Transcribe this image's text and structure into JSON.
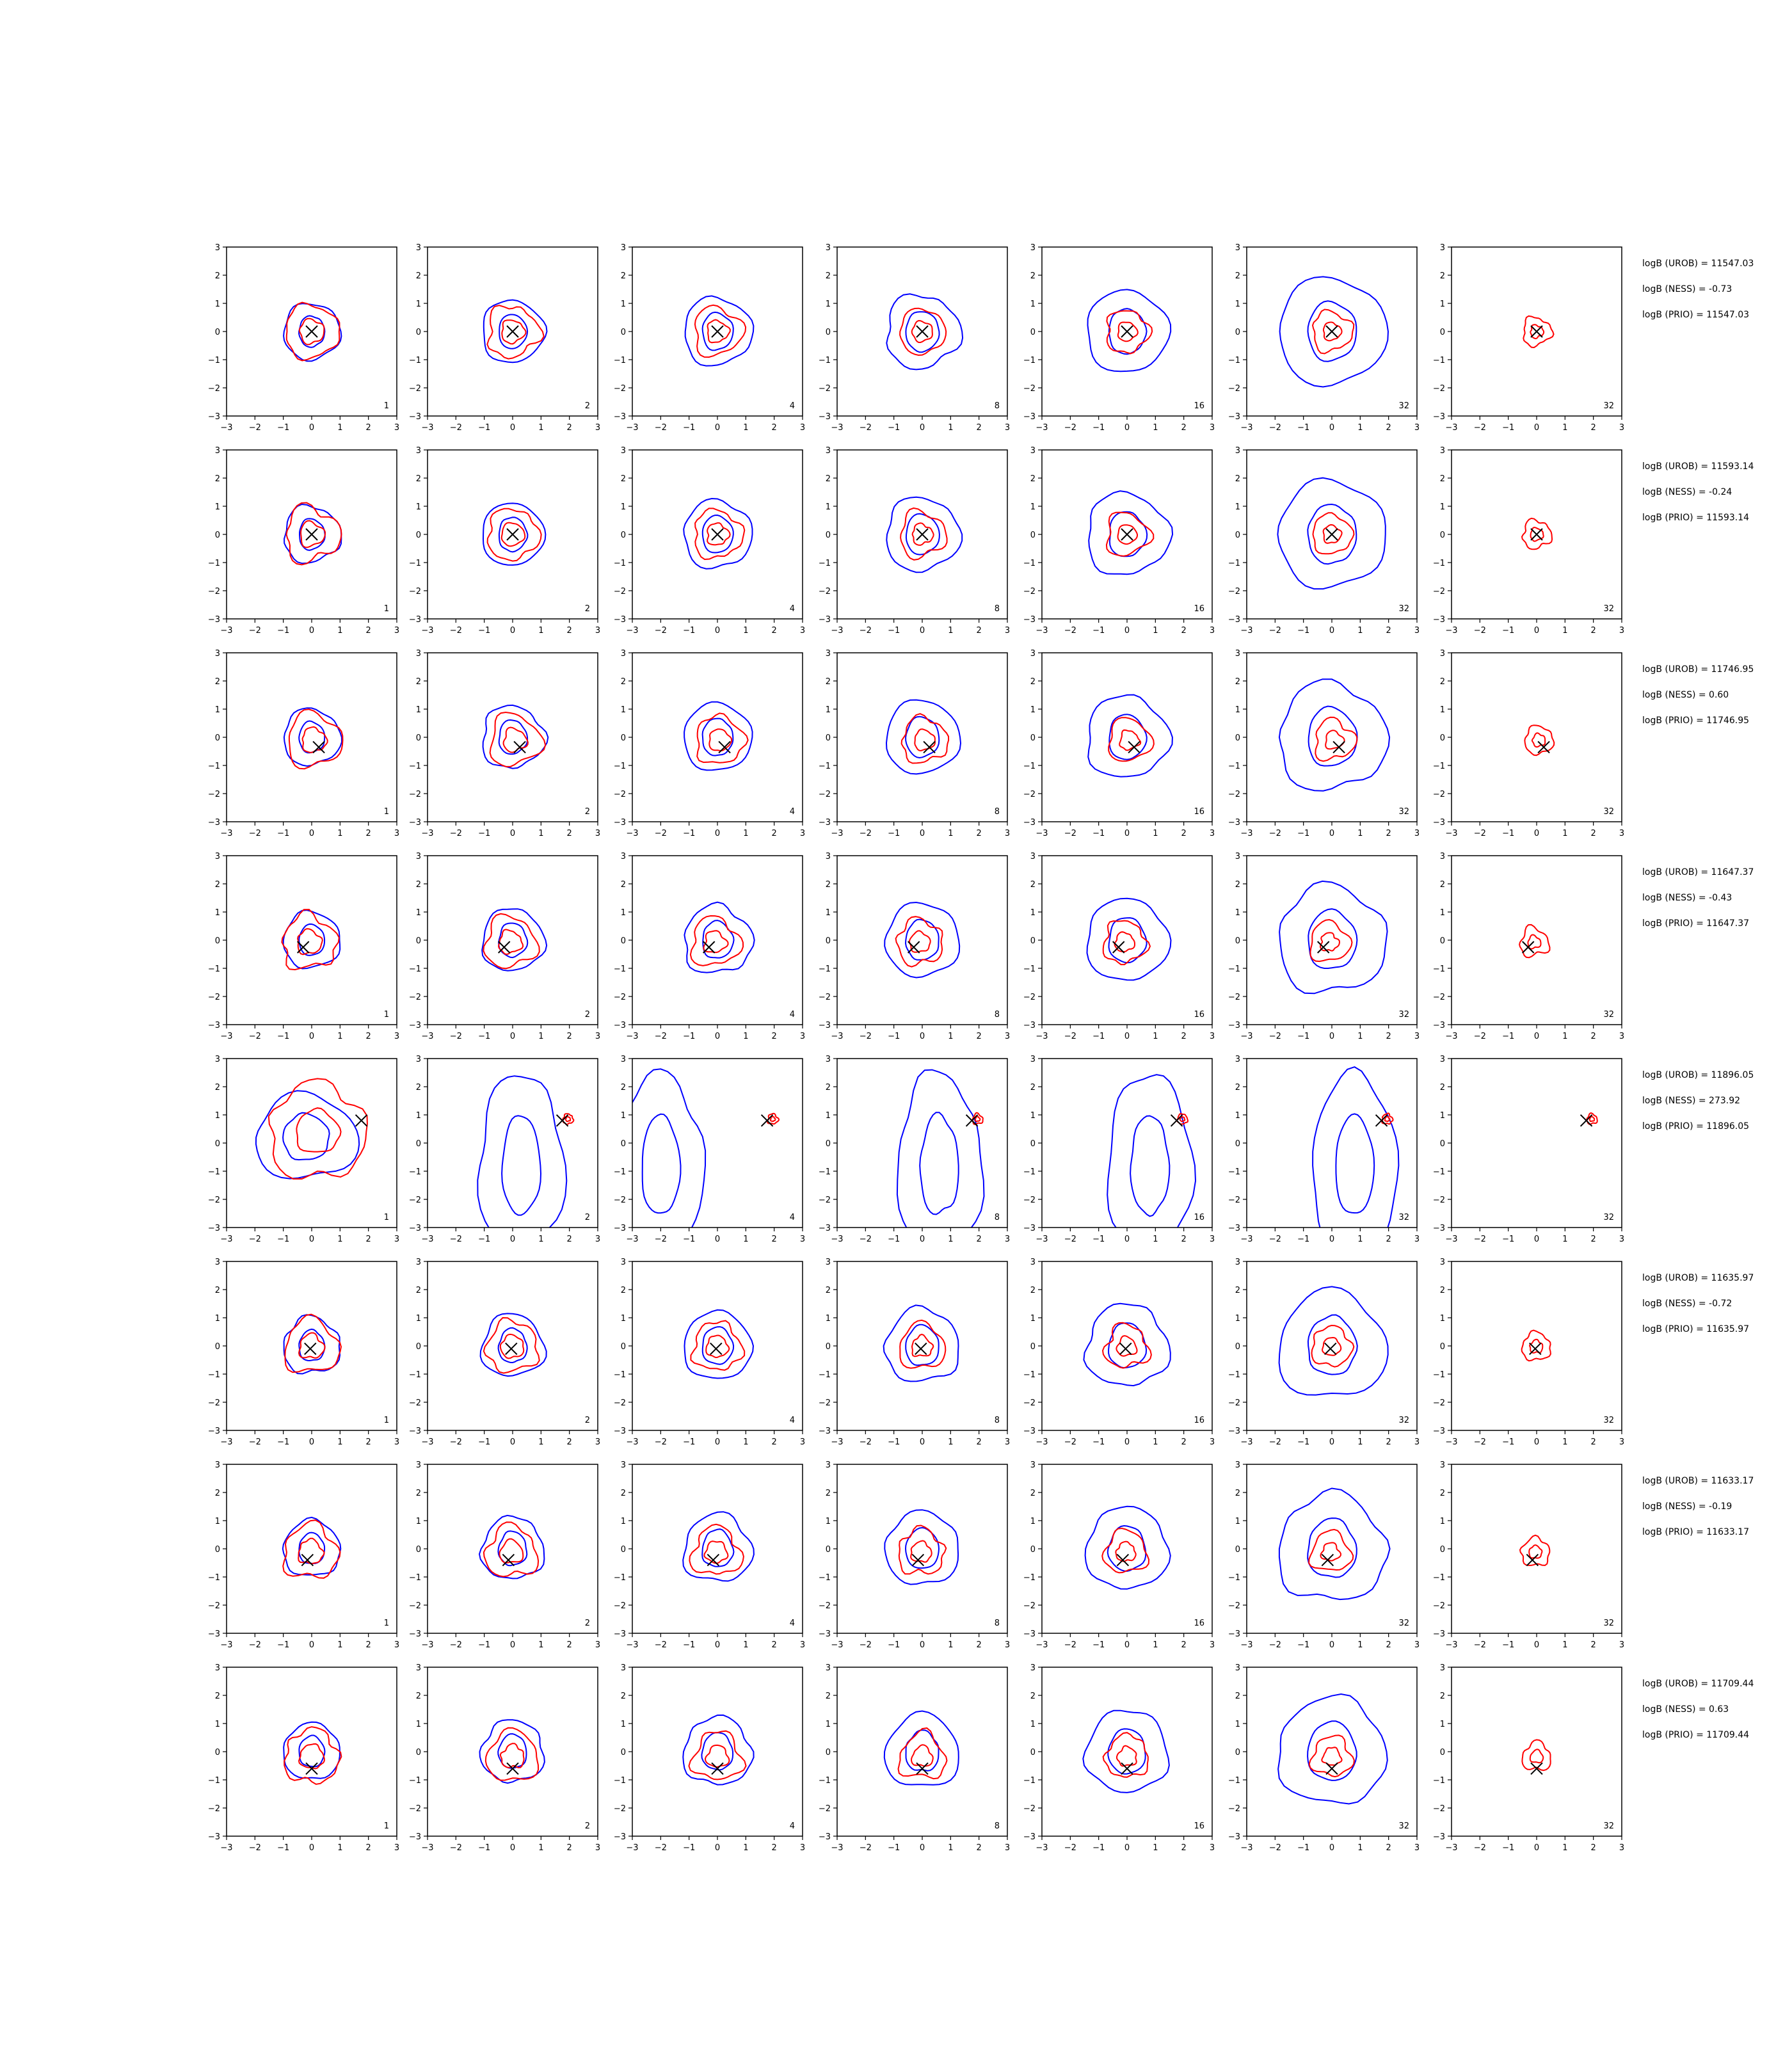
{
  "figure": {
    "n_rows": 8,
    "n_cols": 7
  },
  "colors": {
    "blue_contour": "#0000ff",
    "red_contour": "#ff0000",
    "true_marker": "#000000",
    "axes": "#000000",
    "background": "#ffffff"
  },
  "chart_data": {
    "type": "contour-grid",
    "xlim": [
      -3,
      3
    ],
    "ylim": [
      -3,
      3
    ],
    "xticks": [
      -3,
      -2,
      -1,
      0,
      1,
      2,
      3
    ],
    "yticks": [
      -3,
      -2,
      -1,
      0,
      1,
      2,
      3
    ],
    "tick_labels": [
      "−3",
      "−2",
      "−1",
      "0",
      "1",
      "2",
      "3"
    ],
    "grid": false,
    "legend": "none",
    "column_labels": [
      "1",
      "2",
      "4",
      "8",
      "16",
      "32",
      "32"
    ],
    "column_series": [
      "blue+red",
      "blue+red",
      "blue+red",
      "blue+red",
      "blue+red",
      "blue+red",
      "red"
    ],
    "rows": [
      {
        "marker": [
          0.0,
          0.0
        ],
        "annotations": [
          "logB (UROB) = 11547.03",
          "logB (NESS) = -0.73",
          "logB (PRIO) = 11547.03"
        ]
      },
      {
        "marker": [
          0.0,
          0.0
        ],
        "annotations": [
          "logB (UROB) = 11593.14",
          "logB (NESS) = -0.24",
          "logB (PRIO) = 11593.14"
        ]
      },
      {
        "marker": [
          0.25,
          -0.35
        ],
        "annotations": [
          "logB (UROB) = 11746.95",
          "logB (NESS) = 0.60",
          "logB (PRIO) = 11746.95"
        ]
      },
      {
        "marker": [
          -0.3,
          -0.25
        ],
        "annotations": [
          "logB (UROB) = 11647.37",
          "logB (NESS) = -0.43",
          "logB (PRIO) = 11647.37"
        ]
      },
      {
        "marker": [
          1.75,
          0.8
        ],
        "annotations": [
          "logB (UROB) = 11896.05",
          "logB (NESS) = 273.92",
          "logB (PRIO) = 11896.05"
        ]
      },
      {
        "marker": [
          -0.05,
          -0.1
        ],
        "annotations": [
          "logB (UROB) = 11635.97",
          "logB (NESS) = -0.72",
          "logB (PRIO) = 11635.97"
        ]
      },
      {
        "marker": [
          -0.15,
          -0.4
        ],
        "annotations": [
          "logB (UROB) = 11633.17",
          "logB (NESS) = -0.19",
          "logB (PRIO) = 11633.17"
        ]
      },
      {
        "marker": [
          0.0,
          -0.6
        ],
        "annotations": [
          "logB (UROB) = 11709.44",
          "logB (NESS) = 0.63",
          "logB (PRIO) = 11709.44"
        ]
      }
    ]
  }
}
